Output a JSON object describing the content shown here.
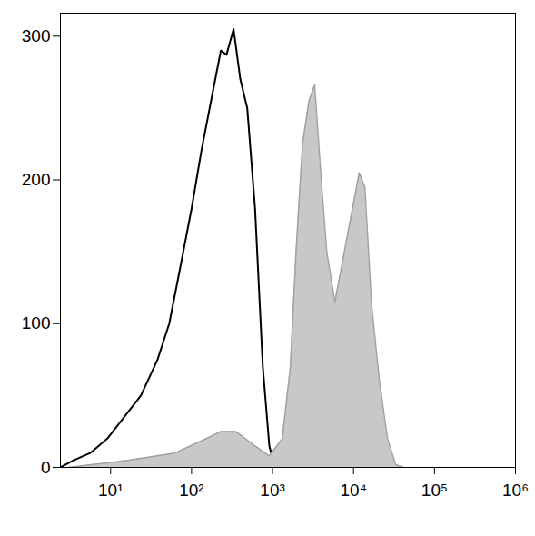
{
  "chart_data": {
    "type": "histogram",
    "log": "x",
    "grid": false,
    "xlim": [
      2.4,
      1000000
    ],
    "xticks": [
      {
        "value": 10,
        "label": "10¹"
      },
      {
        "value": 100,
        "label": "10²"
      },
      {
        "value": 1000,
        "label": "10³"
      },
      {
        "value": 10000,
        "label": "10⁴"
      },
      {
        "value": 100000,
        "label": "10⁵"
      },
      {
        "value": 1000000,
        "label": "10⁶"
      }
    ],
    "ylim": [
      0,
      316
    ],
    "yticks": [
      0,
      100,
      200,
      300
    ],
    "series": [
      {
        "type": "line",
        "color": "#000000",
        "x": [
          2.4,
          3.5,
          5.6,
          9.1,
          14.7,
          23.7,
          38,
          53,
          73,
          100,
          132,
          174,
          230,
          270,
          330,
          400,
          487,
          608,
          758,
          912,
          1047,
          1318
        ],
        "values": [
          0,
          5,
          10,
          20,
          35,
          50,
          75,
          100,
          140,
          180,
          220,
          255,
          290,
          287,
          305,
          270,
          250,
          180,
          70,
          15,
          2,
          0
        ]
      },
      {
        "type": "area",
        "color": "#c8c8c8",
        "x": [
          3,
          17,
          62,
          151,
          230,
          350,
          608,
          912,
          1318,
          1660,
          1950,
          2344,
          2818,
          3311,
          3981,
          4677,
          5888,
          7413,
          9333,
          11749,
          13804,
          16596,
          20893,
          26303,
          33113,
          41687
        ],
        "values": [
          0,
          5,
          10,
          20,
          25,
          25,
          15,
          8,
          20,
          70,
          150,
          225,
          255,
          266,
          201,
          150,
          115,
          145,
          175,
          205,
          195,
          115,
          60,
          20,
          2,
          0
        ]
      }
    ]
  }
}
